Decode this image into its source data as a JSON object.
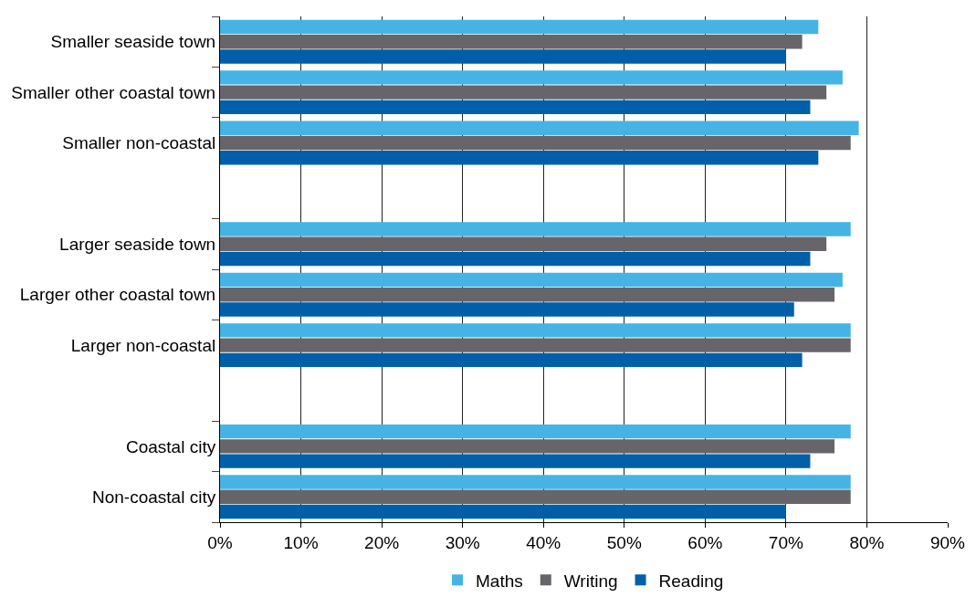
{
  "chart_data": {
    "type": "bar",
    "orientation": "horizontal",
    "categories": [
      "Smaller seaside town",
      "Smaller other coastal town",
      "Smaller non-coastal",
      null,
      "Larger seaside town",
      "Larger other coastal town",
      "Larger non-coastal",
      null,
      "Coastal city",
      "Non-coastal city"
    ],
    "series": [
      {
        "name": "Maths",
        "color": "#45b4e4",
        "values": [
          74,
          77,
          79,
          null,
          78,
          77,
          78,
          null,
          78,
          78
        ]
      },
      {
        "name": "Writing",
        "color": "#676569",
        "values": [
          72,
          75,
          78,
          null,
          75,
          76,
          78,
          null,
          76,
          78
        ]
      },
      {
        "name": "Reading",
        "color": "#005fa8",
        "values": [
          70,
          73,
          74,
          null,
          73,
          71,
          72,
          null,
          73,
          70
        ]
      }
    ],
    "xlim": [
      0,
      90
    ],
    "xticks": [
      {
        "value": 0,
        "label": "0%"
      },
      {
        "value": 10,
        "label": "10%"
      },
      {
        "value": 20,
        "label": "20%"
      },
      {
        "value": 30,
        "label": "30%"
      },
      {
        "value": 40,
        "label": "40%"
      },
      {
        "value": 50,
        "label": "50%"
      },
      {
        "value": 60,
        "label": "60%"
      },
      {
        "value": 70,
        "label": "70%"
      },
      {
        "value": 80,
        "label": "80%"
      },
      {
        "value": 90,
        "label": "90%"
      }
    ],
    "grid": "x",
    "legend": "bottom"
  }
}
